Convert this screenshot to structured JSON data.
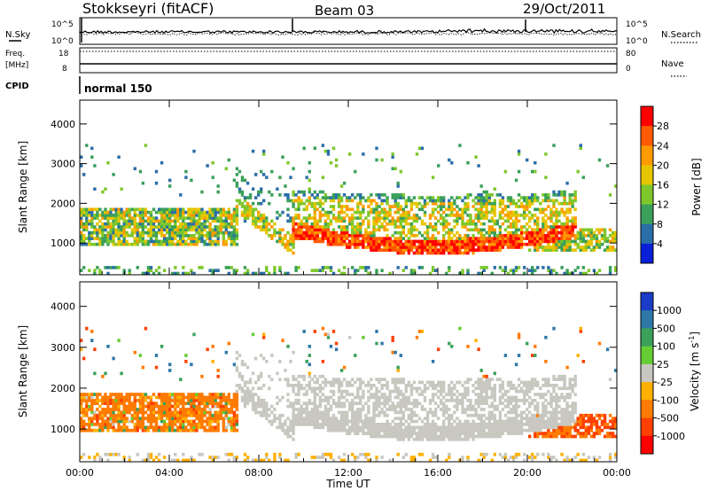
{
  "header": {
    "station": "Stokkseyri (fitACF)",
    "beam": "Beam 03",
    "date": "29/Oct/2011"
  },
  "noise_panel": {
    "left_label": "N.Sky",
    "left_ticks": [
      "10^5",
      "10^0"
    ],
    "right_label": "N.Search",
    "right_ticks": [
      "10^5",
      "10^0"
    ]
  },
  "freq_panel": {
    "left_label_1": "Freq.",
    "left_label_2": "[MHz]",
    "left_ticks": [
      "18",
      "8"
    ],
    "right_label": "Nave",
    "right_ticks": [
      "80",
      "0"
    ]
  },
  "cpid_panel": {
    "label": "CPID",
    "program": "normal 150"
  },
  "chart_data": [
    {
      "type": "heatmap",
      "name": "power",
      "ylabel": "Slant Range [km]",
      "yticks": [
        "1000",
        "2000",
        "3000",
        "4000"
      ],
      "ylim": [
        200,
        4600
      ],
      "xlim": [
        0,
        24
      ],
      "colorbar": {
        "label": "Power [dB]",
        "ticks": [
          "28",
          "24",
          "20",
          "16",
          "12",
          "8",
          "4"
        ],
        "colors": [
          "#ff0000",
          "#ff5a00",
          "#ff9a00",
          "#e6c600",
          "#7ec82c",
          "#3aa05a",
          "#2a6ea8",
          "#0a1fd8"
        ]
      }
    },
    {
      "type": "heatmap",
      "name": "velocity",
      "ylabel": "Slant Range [km]",
      "yticks": [
        "1000",
        "2000",
        "3000",
        "4000"
      ],
      "ylim": [
        200,
        4600
      ],
      "xlim": [
        0,
        24
      ],
      "xlabel": "Time UT",
      "xticks": [
        "00:00",
        "04:00",
        "08:00",
        "12:00",
        "16:00",
        "20:00",
        "00:00"
      ],
      "colorbar": {
        "label": "Velocity [m s^-1]",
        "ticks": [
          "1000",
          "500",
          "100",
          "25",
          "-25",
          "-100",
          "-500",
          "-1000"
        ],
        "colors": [
          "#1a3cc8",
          "#2e78a8",
          "#3aa05a",
          "#66cc33",
          "#c8c8c0",
          "#ffb000",
          "#ff7a00",
          "#ff4000",
          "#ff0000"
        ]
      }
    }
  ]
}
